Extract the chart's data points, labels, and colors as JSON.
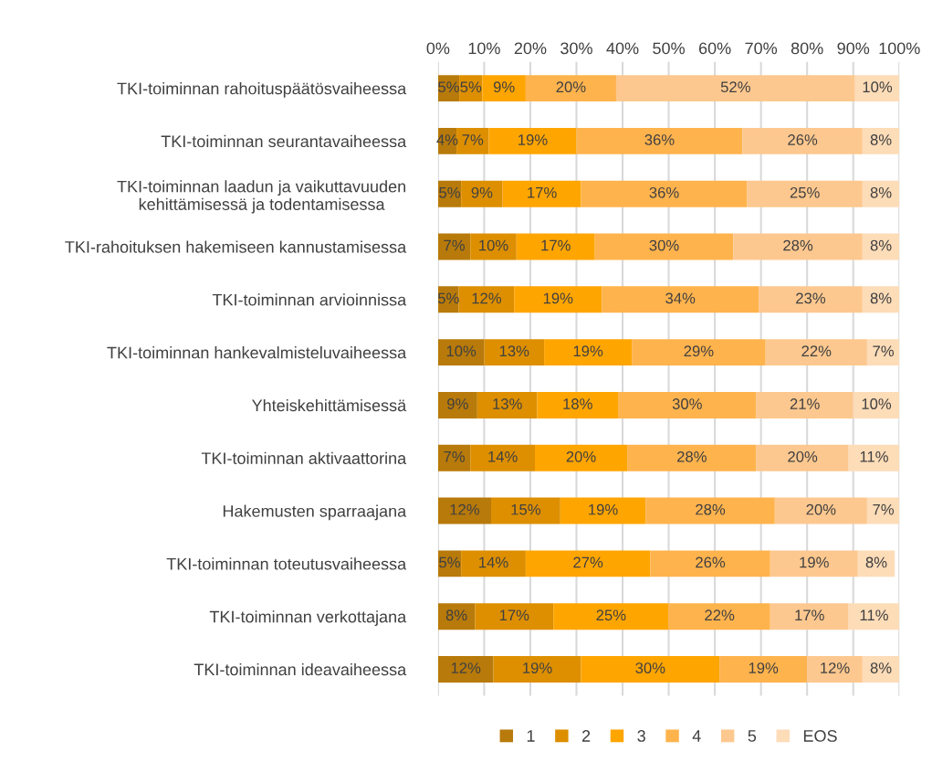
{
  "chart_data": {
    "type": "bar",
    "orientation": "horizontal",
    "stacked": true,
    "categories": [
      "TKI-toiminnan rahoituspäätösvaiheessa",
      "TKI-toiminnan seurantavaiheessa",
      "TKI-toiminnan laadun ja vaikuttavuuden\nkehittämisessä ja todentamisessa",
      "TKI-rahoituksen hakemiseen kannustamisessa",
      "TKI-toiminnan arvioinnissa",
      "TKI-toiminnan hankevalmisteluvaiheessa",
      "Yhteiskehittämisessä",
      "TKI-toiminnan aktivaattorina",
      "Hakemusten sparraajana",
      "TKI-toiminnan toteutusvaiheessa",
      "TKI-toiminnan verkottajana",
      "TKI-toiminnan ideavaiheessa"
    ],
    "series": [
      {
        "name": "1",
        "color": "#b87a0a",
        "values": [
          4.6,
          4,
          5,
          7,
          4.5,
          10,
          8.5,
          7,
          11.5,
          5,
          8,
          12
        ],
        "value_labels": [
          "5%",
          "4%",
          "5%",
          "7%",
          "5%",
          "10%",
          "9%",
          "7%",
          "12%",
          "5%",
          "8%",
          "12%"
        ]
      },
      {
        "name": "2",
        "color": "#dd8f00",
        "values": [
          5,
          7,
          9,
          10,
          12,
          13,
          13,
          14,
          15,
          14,
          17,
          19
        ],
        "value_labels": [
          "5%",
          "7%",
          "9%",
          "10%",
          "12%",
          "13%",
          "13%",
          "14%",
          "15%",
          "14%",
          "17%",
          "19%"
        ]
      },
      {
        "name": "3",
        "color": "#ffa500",
        "values": [
          9.4,
          19,
          17,
          17,
          19,
          19,
          17.5,
          20,
          18.5,
          27,
          25,
          30
        ],
        "value_labels": [
          "9%",
          "19%",
          "17%",
          "17%",
          "19%",
          "19%",
          "18%",
          "20%",
          "19%",
          "27%",
          "25%",
          "30%"
        ]
      },
      {
        "name": "4",
        "color": "#ffb34d",
        "values": [
          19.6,
          36,
          36,
          30,
          34,
          29,
          30,
          28,
          28,
          26,
          22,
          19
        ],
        "value_labels": [
          "20%",
          "36%",
          "36%",
          "30%",
          "34%",
          "29%",
          "30%",
          "28%",
          "28%",
          "26%",
          "22%",
          "19%"
        ]
      },
      {
        "name": "5",
        "color": "#fdc88f",
        "values": [
          51.8,
          26,
          25,
          28,
          22.5,
          22,
          21,
          20,
          20,
          19,
          17,
          12
        ],
        "value_labels": [
          "52%",
          "26%",
          "25%",
          "28%",
          "23%",
          "22%",
          "21%",
          "20%",
          "20%",
          "19%",
          "17%",
          "12%"
        ]
      },
      {
        "name": "EOS",
        "color": "#fddcb8",
        "values": [
          9.6,
          8,
          8,
          8,
          8,
          7,
          10,
          11,
          7,
          8,
          11,
          8
        ],
        "value_labels": [
          "10%",
          "8%",
          "8%",
          "8%",
          "8%",
          "7%",
          "10%",
          "11%",
          "7%",
          "8%",
          "11%",
          "8%"
        ]
      }
    ],
    "xlim": [
      0,
      100
    ],
    "xticks": [
      {
        "value": 0,
        "label": "0%"
      },
      {
        "value": 10,
        "label": "10%"
      },
      {
        "value": 20,
        "label": "20%"
      },
      {
        "value": 30,
        "label": "30%"
      },
      {
        "value": 40,
        "label": "40%"
      },
      {
        "value": 50,
        "label": "50%"
      },
      {
        "value": 60,
        "label": "60%"
      },
      {
        "value": 70,
        "label": "70%"
      },
      {
        "value": 80,
        "label": "80%"
      },
      {
        "value": 90,
        "label": "90%"
      },
      {
        "value": 100,
        "label": "100%"
      }
    ],
    "grid": "x",
    "legend": "bottom"
  }
}
